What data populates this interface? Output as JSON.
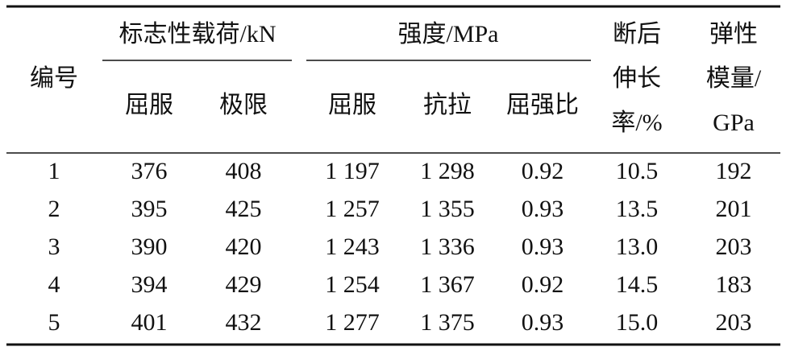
{
  "table": {
    "header": {
      "id": "编号",
      "groups": [
        {
          "label": "标志性载荷/kN",
          "columns": [
            "屈服",
            "极限"
          ]
        },
        {
          "label": "强度/MPa",
          "columns": [
            "屈服",
            "抗拉",
            "屈强比"
          ]
        }
      ],
      "elongation": [
        "断后",
        "伸长",
        "率/%"
      ],
      "modulus": [
        "弹性",
        "模量/",
        "GPa"
      ]
    },
    "rows": [
      [
        "1",
        "376",
        "408",
        "1 197",
        "1 298",
        "0.92",
        "10.5",
        "192"
      ],
      [
        "2",
        "395",
        "425",
        "1 257",
        "1 355",
        "0.93",
        "13.5",
        "201"
      ],
      [
        "3",
        "390",
        "420",
        "1 243",
        "1 336",
        "0.93",
        "13.0",
        "203"
      ],
      [
        "4",
        "394",
        "429",
        "1 254",
        "1 367",
        "0.92",
        "14.5",
        "183"
      ],
      [
        "5",
        "401",
        "432",
        "1 277",
        "1 375",
        "0.93",
        "15.0",
        "203"
      ]
    ]
  }
}
